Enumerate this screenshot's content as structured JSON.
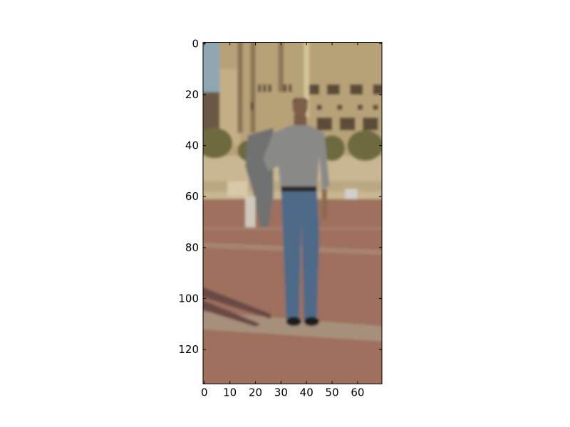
{
  "chart_data": {
    "type": "image",
    "xlim": [
      -0.5,
      69.5
    ],
    "ylim": [
      133.5,
      -0.5
    ],
    "xticks": [
      0,
      10,
      20,
      30,
      40,
      50,
      60
    ],
    "yticks": [
      0,
      20,
      40,
      60,
      80,
      100,
      120
    ]
  }
}
